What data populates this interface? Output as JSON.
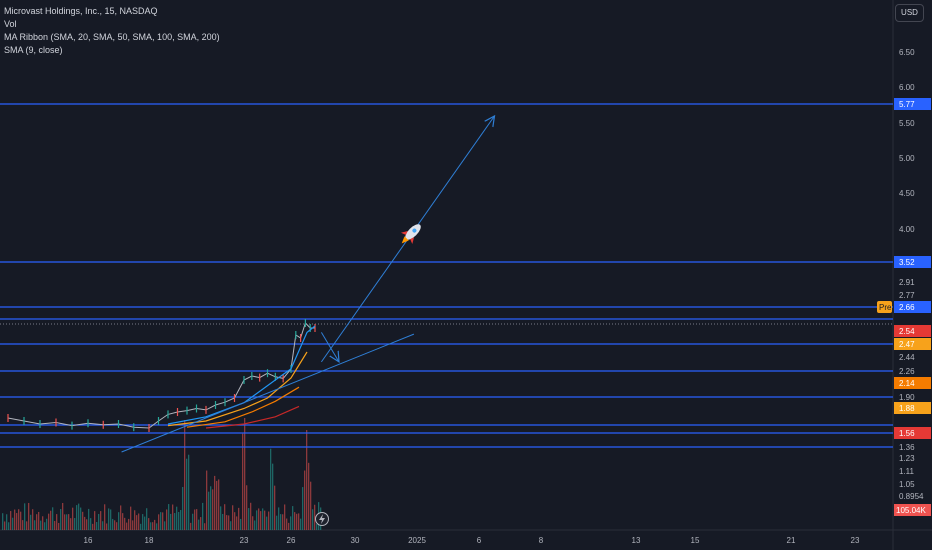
{
  "legend": {
    "symbol": "Microvast Holdings, Inc., 15, NASDAQ",
    "vol": "Vol",
    "ma_ribbon": "MA Ribbon (SMA, 20, SMA, 50, SMA, 100, SMA, 200)",
    "sma": "SMA (9, close)"
  },
  "currency_button": "USD",
  "colors": {
    "background": "#161a25",
    "level_line": "#2962ff",
    "trend_line": "#2f7fd6",
    "candle_up": "#26a69a",
    "candle_down": "#ef5350",
    "sma9": "#2196f3",
    "ma20": "#f7a21b",
    "ma50": "#f57c00",
    "ma100": "#e65100",
    "ma200": "#c62828",
    "pre_badge": "#f7a21b"
  },
  "chart_data": {
    "type": "line",
    "ylim": [
      0.75,
      6.9
    ],
    "y_ticks": [
      {
        "value": 6.5,
        "label": "6.50"
      },
      {
        "value": 6.0,
        "label": "6.00"
      },
      {
        "value": 5.5,
        "label": "5.50"
      },
      {
        "value": 5.0,
        "label": "5.00"
      },
      {
        "value": 4.5,
        "label": "4.50"
      },
      {
        "value": 4.0,
        "label": "4.00"
      },
      {
        "value": 2.91,
        "label": "2.91"
      },
      {
        "value": 2.77,
        "label": "2.77"
      },
      {
        "value": 2.44,
        "label": "2.44"
      },
      {
        "value": 2.26,
        "label": "2.26"
      },
      {
        "value": 1.9,
        "label": "1.90"
      },
      {
        "value": 1.58,
        "label": "1.58"
      },
      {
        "value": 1.36,
        "label": "1.36"
      },
      {
        "value": 1.23,
        "label": "1.23"
      },
      {
        "value": 1.11,
        "label": "1.11"
      },
      {
        "value": 1.05,
        "label": "1.05"
      },
      {
        "value": 0.8954,
        "label": "0.8954"
      }
    ],
    "x_ticks": [
      {
        "day": 16,
        "label": "16"
      },
      {
        "day": 18,
        "label": "18"
      },
      {
        "day": 23,
        "label": "23"
      },
      {
        "day": 26,
        "label": "26"
      },
      {
        "day": 30,
        "label": "30"
      },
      {
        "day": 32,
        "label": "2025"
      },
      {
        "day": 37,
        "label": "6"
      },
      {
        "day": 39,
        "label": "8"
      },
      {
        "day": 44,
        "label": "13"
      },
      {
        "day": 46,
        "label": "15"
      },
      {
        "day": 51,
        "label": "21"
      },
      {
        "day": 53,
        "label": "23"
      }
    ],
    "level_lines": [
      {
        "value": 5.77,
        "label": "5.77"
      },
      {
        "value": 3.52,
        "label": "3.52"
      },
      {
        "value": 2.66,
        "label": "2.66"
      },
      {
        "value": 2.55,
        "label": "2.55"
      },
      {
        "value": 2.47,
        "label": "2.47"
      },
      {
        "value": 2.26,
        "label": "2.26"
      },
      {
        "value": 1.9,
        "label": "1.90"
      },
      {
        "value": 1.66,
        "label": "1.66"
      },
      {
        "value": 1.56,
        "label": "1.56"
      },
      {
        "value": 1.36,
        "label": "1.36"
      }
    ],
    "price_badges": [
      {
        "value": 5.77,
        "label": "5.77",
        "color": "#2962ff"
      },
      {
        "value": 3.52,
        "label": "3.52",
        "color": "#2962ff"
      },
      {
        "value": 2.66,
        "label": "2.66",
        "color": "#2962ff",
        "tag": "Pre"
      },
      {
        "value": 2.54,
        "label": "2.54",
        "color": "#e53935"
      },
      {
        "value": 2.47,
        "label": "2.47",
        "color": "#f7a21b"
      },
      {
        "value": 2.14,
        "label": "2.14",
        "color": "#f57c00"
      },
      {
        "value": 1.88,
        "label": "1.88",
        "color": "#f7a21b"
      },
      {
        "value": 1.56,
        "label": "1.56",
        "color": "#e53935"
      }
    ],
    "volume_badge": "105.04K",
    "price_series": {
      "name": "",
      "points": [
        [
          13.5,
          1.7
        ],
        [
          14.0,
          1.66
        ],
        [
          14.5,
          1.62
        ],
        [
          15.0,
          1.64
        ],
        [
          15.5,
          1.6
        ],
        [
          16.0,
          1.63
        ],
        [
          16.5,
          1.61
        ],
        [
          17.0,
          1.62
        ],
        [
          17.5,
          1.58
        ],
        [
          18.0,
          1.57
        ],
        [
          18.5,
          1.66
        ],
        [
          19.0,
          1.76
        ],
        [
          19.5,
          1.8
        ],
        [
          20.0,
          1.82
        ],
        [
          20.5,
          1.85
        ],
        [
          21.0,
          1.83
        ],
        [
          21.5,
          1.9
        ],
        [
          22.0,
          1.96
        ],
        [
          22.5,
          2.05
        ],
        [
          23.0,
          2.2
        ],
        [
          23.5,
          2.3
        ],
        [
          24.0,
          2.26
        ],
        [
          24.5,
          2.32
        ],
        [
          25.0,
          2.28
        ],
        [
          25.5,
          2.24
        ],
        [
          26.0,
          2.35
        ],
        [
          26.3,
          2.62
        ],
        [
          26.6,
          2.58
        ],
        [
          26.9,
          2.75
        ],
        [
          27.2,
          2.7
        ],
        [
          27.5,
          2.7
        ]
      ]
    },
    "ma_series": [
      {
        "points": [
          [
            19.0,
            1.62
          ],
          [
            21.0,
            1.72
          ],
          [
            23.0,
            1.95
          ],
          [
            25.0,
            2.2
          ],
          [
            26.0,
            2.35
          ],
          [
            27.0,
            2.65
          ],
          [
            27.5,
            2.72
          ]
        ]
      },
      {
        "points": [
          [
            19.0,
            1.6
          ],
          [
            21.0,
            1.66
          ],
          [
            23.0,
            1.85
          ],
          [
            24.5,
            2.05
          ],
          [
            26.0,
            2.25
          ],
          [
            27.0,
            2.47
          ]
        ]
      },
      {
        "points": [
          [
            20.0,
            1.58
          ],
          [
            22.0,
            1.65
          ],
          [
            23.5,
            1.8
          ],
          [
            25.0,
            1.98
          ],
          [
            26.5,
            2.14
          ]
        ]
      },
      {
        "points": [
          [
            21.0,
            1.57
          ],
          [
            23.0,
            1.62
          ],
          [
            25.0,
            1.72
          ],
          [
            26.5,
            1.88
          ]
        ]
      }
    ],
    "trend_lines": [
      {
        "from": [
          17.1,
          1.2
        ],
        "to": [
          31.9,
          2.63
        ]
      },
      {
        "from": [
          27.9,
          2.4
        ],
        "to": [
          37.5,
          5.62
        ],
        "arrow": true
      },
      {
        "from": [
          27.9,
          2.65
        ],
        "to": [
          29.0,
          2.4
        ],
        "arrow": true
      }
    ],
    "rocket_at": [
      31.0,
      4.0
    ],
    "volume": {
      "max": 105.04
    }
  }
}
